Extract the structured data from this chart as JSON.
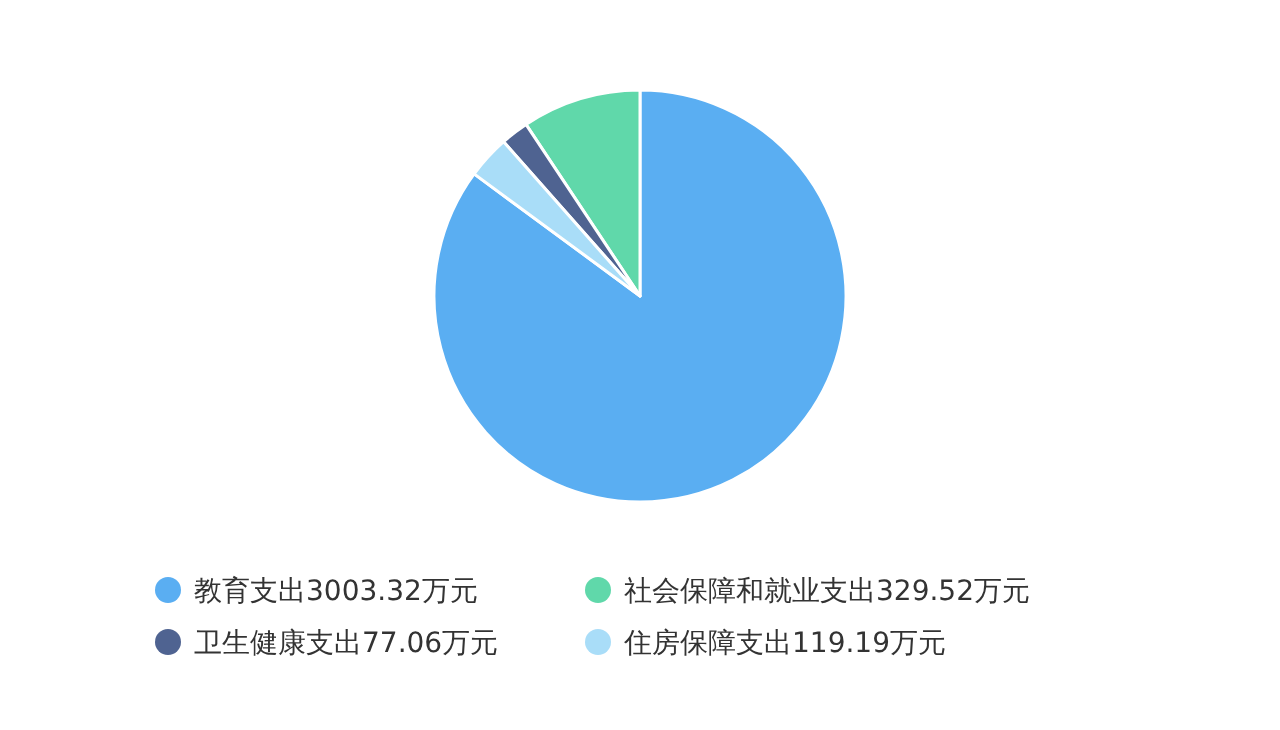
{
  "chart_data": {
    "type": "pie",
    "categories": [
      "教育支出3003.32万元",
      "社会保障和就业支出329.52万元",
      "卫生健康支出77.06万元",
      "住房保障支出119.19万元"
    ],
    "values": [
      3003.32,
      329.52,
      77.06,
      119.19
    ],
    "colors": [
      "#5aaef2",
      "#60d8aa",
      "#4f6391",
      "#a9ddf8"
    ],
    "legend": "bottom"
  }
}
